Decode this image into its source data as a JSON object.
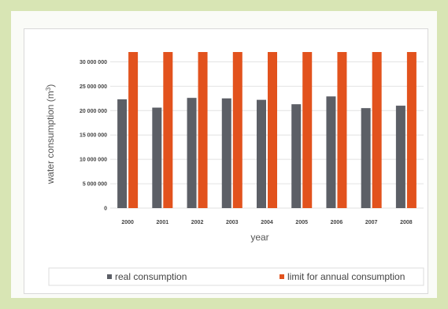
{
  "chart_data": {
    "type": "bar",
    "categories": [
      "2000",
      "2001",
      "2002",
      "2003",
      "2004",
      "2005",
      "2006",
      "2007",
      "2008"
    ],
    "series": [
      {
        "name": "real consumption",
        "color": "#5c5f66",
        "values": [
          22300000,
          20600000,
          22600000,
          22500000,
          22200000,
          21300000,
          22900000,
          20500000,
          21000000
        ]
      },
      {
        "name": "limit for annual consumption",
        "color": "#e2521d",
        "values": [
          32000000,
          32000000,
          32000000,
          32000000,
          32000000,
          32000000,
          32000000,
          32000000,
          32000000
        ]
      }
    ],
    "xlabel": "year",
    "ylabel": "water consumption (m",
    "ylabel_sup": "3",
    "ylabel_end": ")",
    "ylim": [
      0,
      32000000
    ],
    "yticks": [
      0,
      5000000,
      10000000,
      15000000,
      20000000,
      25000000,
      30000000
    ],
    "ytick_labels": [
      "0",
      "5 000 000",
      "10 000 000",
      "15 000 000",
      "20 000 000",
      "25 000 000",
      "30 000 000"
    ],
    "grid": true,
    "legend_position": "bottom"
  }
}
